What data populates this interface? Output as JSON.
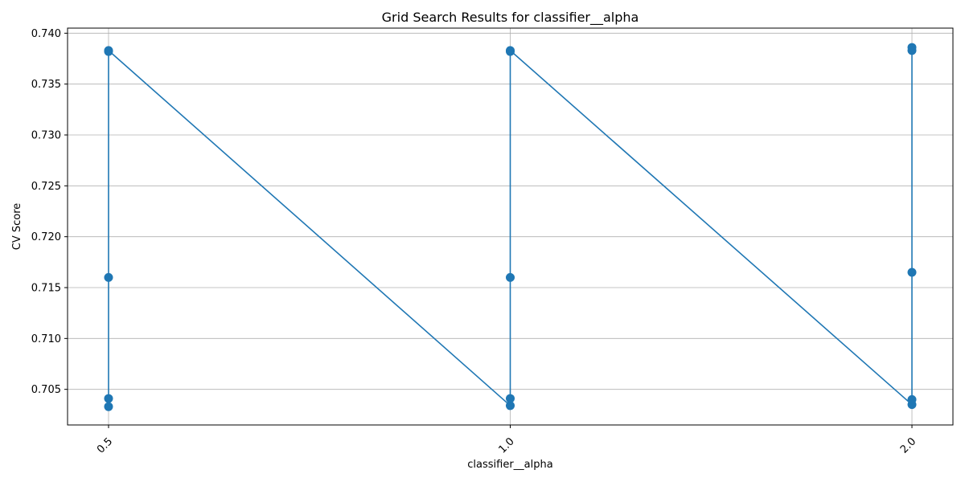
{
  "chart_data": {
    "type": "line",
    "title": "Grid Search Results for classifier__alpha",
    "xlabel": "classifier__alpha",
    "ylabel": "CV Score",
    "x_categories": [
      "0.5",
      "1.0",
      "2.0"
    ],
    "x_tick_rotation_deg": 45,
    "ylim": [
      0.7015,
      0.7405
    ],
    "y_ticks": [
      0.705,
      0.71,
      0.715,
      0.72,
      0.725,
      0.73,
      0.735,
      0.74
    ],
    "y_tick_labels": [
      "0.705",
      "0.710",
      "0.715",
      "0.720",
      "0.725",
      "0.730",
      "0.735",
      "0.740"
    ],
    "grid": true,
    "series": [
      {
        "color": "#1f77b4",
        "marker": "circle",
        "points": [
          {
            "x": "0.5",
            "y": 0.7033
          },
          {
            "x": "0.5",
            "y": 0.7041
          },
          {
            "x": "0.5",
            "y": 0.716
          },
          {
            "x": "0.5",
            "y": 0.7382
          },
          {
            "x": "0.5",
            "y": 0.7383
          },
          {
            "x": "1.0",
            "y": 0.7034
          },
          {
            "x": "1.0",
            "y": 0.7041
          },
          {
            "x": "1.0",
            "y": 0.716
          },
          {
            "x": "1.0",
            "y": 0.7382
          },
          {
            "x": "1.0",
            "y": 0.7383
          },
          {
            "x": "2.0",
            "y": 0.7035
          },
          {
            "x": "2.0",
            "y": 0.704
          },
          {
            "x": "2.0",
            "y": 0.7165
          },
          {
            "x": "2.0",
            "y": 0.7383
          },
          {
            "x": "2.0",
            "y": 0.7386
          }
        ]
      }
    ]
  }
}
